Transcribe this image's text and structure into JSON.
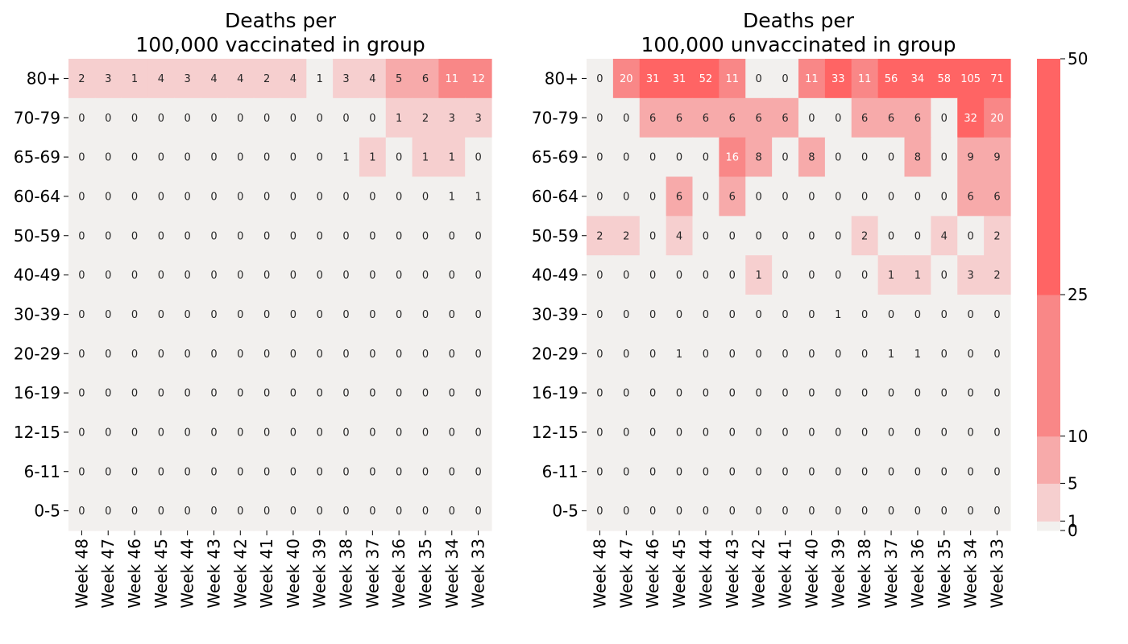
{
  "chart_data": [
    {
      "type": "heatmap",
      "title": "Deaths per\n100,000 vaccinated in group",
      "x": [
        "Week 48",
        "Week 47",
        "Week 46",
        "Week 45",
        "Week 44",
        "Week 43",
        "Week 42",
        "Week 41",
        "Week 40",
        "Week 39",
        "Week 38",
        "Week 37",
        "Week 36",
        "Week 35",
        "Week 34",
        "Week 33"
      ],
      "y": [
        "80+",
        "70-79",
        "65-69",
        "60-64",
        "50-59",
        "40-49",
        "30-39",
        "20-29",
        "16-19",
        "12-15",
        "6-11",
        "0-5"
      ],
      "values": [
        [
          2,
          3,
          1,
          4,
          3,
          4,
          4,
          2,
          4,
          1,
          3,
          4,
          5,
          6,
          11,
          12
        ],
        [
          0,
          0,
          0,
          0,
          0,
          0,
          0,
          0,
          0,
          0,
          0,
          0,
          1,
          2,
          3,
          3
        ],
        [
          0,
          0,
          0,
          0,
          0,
          0,
          0,
          0,
          0,
          0,
          1,
          1,
          0,
          1,
          1,
          0
        ],
        [
          0,
          0,
          0,
          0,
          0,
          0,
          0,
          0,
          0,
          0,
          0,
          0,
          0,
          0,
          1,
          1
        ],
        [
          0,
          0,
          0,
          0,
          0,
          0,
          0,
          0,
          0,
          0,
          0,
          0,
          0,
          0,
          0,
          0
        ],
        [
          0,
          0,
          0,
          0,
          0,
          0,
          0,
          0,
          0,
          0,
          0,
          0,
          0,
          0,
          0,
          0
        ],
        [
          0,
          0,
          0,
          0,
          0,
          0,
          0,
          0,
          0,
          0,
          0,
          0,
          0,
          0,
          0,
          0
        ],
        [
          0,
          0,
          0,
          0,
          0,
          0,
          0,
          0,
          0,
          0,
          0,
          0,
          0,
          0,
          0,
          0
        ],
        [
          0,
          0,
          0,
          0,
          0,
          0,
          0,
          0,
          0,
          0,
          0,
          0,
          0,
          0,
          0,
          0
        ],
        [
          0,
          0,
          0,
          0,
          0,
          0,
          0,
          0,
          0,
          0,
          0,
          0,
          0,
          0,
          0,
          0
        ],
        [
          0,
          0,
          0,
          0,
          0,
          0,
          0,
          0,
          0,
          0,
          0,
          0,
          0,
          0,
          0,
          0
        ],
        [
          0,
          0,
          0,
          0,
          0,
          0,
          0,
          0,
          0,
          0,
          0,
          0,
          0,
          0,
          0,
          0
        ]
      ],
      "cell_colors": [
        [
          1,
          1,
          1,
          1,
          1,
          1,
          1,
          1,
          1,
          0,
          1,
          1,
          2,
          2,
          3,
          3
        ],
        [
          0,
          0,
          0,
          0,
          0,
          0,
          0,
          0,
          0,
          0,
          0,
          0,
          1,
          1,
          1,
          1
        ],
        [
          0,
          0,
          0,
          0,
          0,
          0,
          0,
          0,
          0,
          0,
          0,
          1,
          0,
          1,
          1,
          0
        ],
        [
          0,
          0,
          0,
          0,
          0,
          0,
          0,
          0,
          0,
          0,
          0,
          0,
          0,
          0,
          0,
          0
        ],
        [
          0,
          0,
          0,
          0,
          0,
          0,
          0,
          0,
          0,
          0,
          0,
          0,
          0,
          0,
          0,
          0
        ],
        [
          0,
          0,
          0,
          0,
          0,
          0,
          0,
          0,
          0,
          0,
          0,
          0,
          0,
          0,
          0,
          0
        ],
        [
          0,
          0,
          0,
          0,
          0,
          0,
          0,
          0,
          0,
          0,
          0,
          0,
          0,
          0,
          0,
          0
        ],
        [
          0,
          0,
          0,
          0,
          0,
          0,
          0,
          0,
          0,
          0,
          0,
          0,
          0,
          0,
          0,
          0
        ],
        [
          0,
          0,
          0,
          0,
          0,
          0,
          0,
          0,
          0,
          0,
          0,
          0,
          0,
          0,
          0,
          0
        ],
        [
          0,
          0,
          0,
          0,
          0,
          0,
          0,
          0,
          0,
          0,
          0,
          0,
          0,
          0,
          0,
          0
        ],
        [
          0,
          0,
          0,
          0,
          0,
          0,
          0,
          0,
          0,
          0,
          0,
          0,
          0,
          0,
          0,
          0
        ],
        [
          0,
          0,
          0,
          0,
          0,
          0,
          0,
          0,
          0,
          0,
          0,
          0,
          0,
          0,
          0,
          0
        ]
      ]
    },
    {
      "type": "heatmap",
      "title": "Deaths per\n100,000 unvaccinated in group",
      "x": [
        "Week 48",
        "Week 47",
        "Week 46",
        "Week 45",
        "Week 44",
        "Week 43",
        "Week 42",
        "Week 41",
        "Week 40",
        "Week 39",
        "Week 38",
        "Week 37",
        "Week 36",
        "Week 35",
        "Week 34",
        "Week 33"
      ],
      "y": [
        "80+",
        "70-79",
        "65-69",
        "60-64",
        "50-59",
        "40-49",
        "30-39",
        "20-29",
        "16-19",
        "12-15",
        "6-11",
        "0-5"
      ],
      "values": [
        [
          0,
          20,
          31,
          31,
          52,
          11,
          0,
          0,
          11,
          33,
          11,
          56,
          34,
          58,
          105,
          71
        ],
        [
          0,
          0,
          6,
          6,
          6,
          6,
          6,
          6,
          0,
          0,
          6,
          6,
          6,
          0,
          32,
          20
        ],
        [
          0,
          0,
          0,
          0,
          0,
          16,
          8,
          0,
          8,
          0,
          0,
          0,
          8,
          0,
          9,
          9
        ],
        [
          0,
          0,
          0,
          6,
          0,
          6,
          0,
          0,
          0,
          0,
          0,
          0,
          0,
          0,
          6,
          6
        ],
        [
          2,
          2,
          0,
          4,
          0,
          0,
          0,
          0,
          0,
          0,
          2,
          0,
          0,
          4,
          0,
          2
        ],
        [
          0,
          0,
          0,
          0,
          0,
          0,
          1,
          0,
          0,
          0,
          0,
          1,
          1,
          0,
          3,
          2
        ],
        [
          0,
          0,
          0,
          0,
          0,
          0,
          0,
          0,
          0,
          1,
          0,
          0,
          0,
          0,
          0,
          0
        ],
        [
          0,
          0,
          0,
          1,
          0,
          0,
          0,
          0,
          0,
          0,
          0,
          1,
          1,
          0,
          0,
          0
        ],
        [
          0,
          0,
          0,
          0,
          0,
          0,
          0,
          0,
          0,
          0,
          0,
          0,
          0,
          0,
          0,
          0
        ],
        [
          0,
          0,
          0,
          0,
          0,
          0,
          0,
          0,
          0,
          0,
          0,
          0,
          0,
          0,
          0,
          0
        ],
        [
          0,
          0,
          0,
          0,
          0,
          0,
          0,
          0,
          0,
          0,
          0,
          0,
          0,
          0,
          0,
          0
        ],
        [
          0,
          0,
          0,
          0,
          0,
          0,
          0,
          0,
          0,
          0,
          0,
          0,
          0,
          0,
          0,
          0
        ]
      ],
      "cell_colors": [
        [
          0,
          3,
          4,
          4,
          4,
          3,
          0,
          0,
          3,
          4,
          3,
          4,
          4,
          4,
          4,
          4
        ],
        [
          0,
          0,
          2,
          2,
          2,
          2,
          2,
          2,
          0,
          0,
          2,
          2,
          2,
          0,
          4,
          3
        ],
        [
          0,
          0,
          0,
          0,
          0,
          3,
          2,
          0,
          2,
          0,
          0,
          0,
          2,
          0,
          2,
          2
        ],
        [
          0,
          0,
          0,
          2,
          0,
          2,
          0,
          0,
          0,
          0,
          0,
          0,
          0,
          0,
          2,
          2
        ],
        [
          1,
          1,
          0,
          1,
          0,
          0,
          0,
          0,
          0,
          0,
          1,
          0,
          0,
          1,
          0,
          1
        ],
        [
          0,
          0,
          0,
          0,
          0,
          0,
          1,
          0,
          0,
          0,
          0,
          1,
          1,
          0,
          1,
          1
        ],
        [
          0,
          0,
          0,
          0,
          0,
          0,
          0,
          0,
          0,
          0,
          0,
          0,
          0,
          0,
          0,
          0
        ],
        [
          0,
          0,
          0,
          0,
          0,
          0,
          0,
          0,
          0,
          0,
          0,
          0,
          0,
          0,
          0,
          0
        ],
        [
          0,
          0,
          0,
          0,
          0,
          0,
          0,
          0,
          0,
          0,
          0,
          0,
          0,
          0,
          0,
          0
        ],
        [
          0,
          0,
          0,
          0,
          0,
          0,
          0,
          0,
          0,
          0,
          0,
          0,
          0,
          0,
          0,
          0
        ],
        [
          0,
          0,
          0,
          0,
          0,
          0,
          0,
          0,
          0,
          0,
          0,
          0,
          0,
          0,
          0,
          0
        ],
        [
          0,
          0,
          0,
          0,
          0,
          0,
          0,
          0,
          0,
          0,
          0,
          0,
          0,
          0,
          0,
          0
        ]
      ]
    }
  ],
  "colorbar": {
    "bounds": [
      0,
      1,
      5,
      10,
      25,
      50
    ],
    "tick_labels": [
      "0",
      "1",
      "5",
      "10",
      "25",
      "50"
    ],
    "colors": [
      "#f2f0ee",
      "#f6cfcf",
      "#f7aaaa",
      "#f98787",
      "#ff6464"
    ]
  },
  "text_colors": {
    "dark": "#262626",
    "light": "#ffffff"
  }
}
